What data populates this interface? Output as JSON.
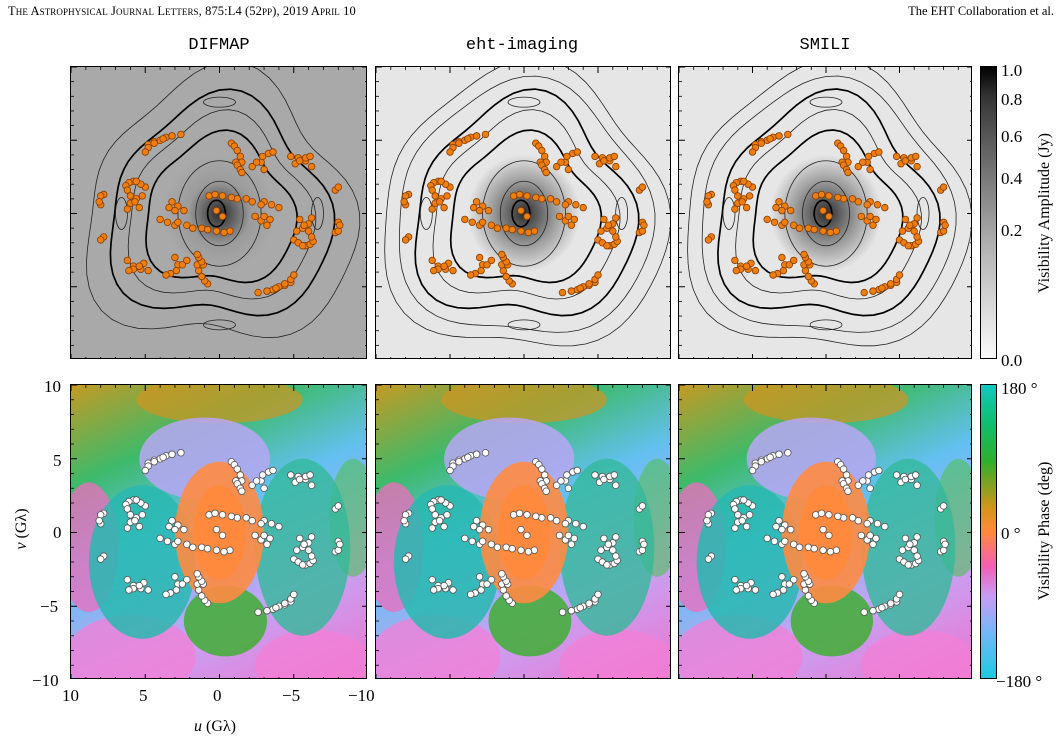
{
  "header": {
    "journal": "The Astrophysical Journal Letters, 875:L4 (52pp), 2019 April 10",
    "authors": "The EHT Collaboration et al."
  },
  "columns": [
    {
      "title": "DIFMAP"
    },
    {
      "title": "eht-imaging"
    },
    {
      "title": "SMILI"
    }
  ],
  "colorbars": {
    "amplitude": {
      "label": "Visibility Amplitude (Jy)",
      "ticks": [
        "1.0",
        "0.8",
        "0.6",
        "0.4",
        "0.2",
        "0.0"
      ],
      "tick_values": [
        1.0,
        0.8,
        0.6,
        0.4,
        0.2,
        0.0
      ]
    },
    "phase": {
      "label": "Visibility Phase (deg)",
      "ticks": [
        "180 °",
        "0 °",
        "−180 °"
      ],
      "tick_values": [
        180,
        0,
        -180
      ]
    }
  },
  "axes": {
    "xlabel_var": "u",
    "xlabel_unit": "(Gλ)",
    "ylabel_var": "v",
    "ylabel_unit": "(Gλ)",
    "xticks": [
      "10",
      "5",
      "0",
      "−5",
      "−10"
    ],
    "yticks": [
      "10",
      "5",
      "0",
      "−5",
      "−10"
    ],
    "xlim": [
      10,
      -10
    ],
    "ylim": [
      -10,
      10
    ]
  },
  "uv_tracks": [
    [
      [
        -0.8,
        4.8
      ],
      [
        -1.0,
        4.6
      ],
      [
        -1.2,
        4.3
      ],
      [
        -1.4,
        3.9
      ],
      [
        -1.5,
        3.5
      ]
    ],
    [
      [
        -1.1,
        3.5
      ],
      [
        -1.2,
        3.3
      ],
      [
        -1.4,
        3.0
      ],
      [
        -1.5,
        2.8
      ]
    ],
    [
      [
        -4.8,
        3.9
      ],
      [
        -5.3,
        3.8
      ],
      [
        -5.8,
        3.6
      ],
      [
        -6.2,
        3.2
      ]
    ],
    [
      [
        3.2,
        5.3
      ],
      [
        3.6,
        5.2
      ],
      [
        4.0,
        5.0
      ],
      [
        4.4,
        4.9
      ],
      [
        4.8,
        4.7
      ]
    ],
    [
      [
        5.8,
        2.2
      ],
      [
        6.1,
        2.1
      ],
      [
        6.3,
        1.9
      ]
    ],
    [
      [
        5.2,
        1.2
      ],
      [
        5.6,
        1.0
      ],
      [
        6.0,
        0.7
      ],
      [
        6.2,
        0.3
      ]
    ],
    [
      [
        7.8,
        1.3
      ],
      [
        8.0,
        1.2
      ]
    ],
    [
      [
        3.2,
        0.8
      ],
      [
        2.8,
        0.5
      ],
      [
        2.4,
        0.2
      ]
    ],
    [
      [
        -3.0,
        0.8
      ],
      [
        -3.5,
        0.6
      ],
      [
        -4.0,
        0.4
      ]
    ],
    [
      [
        2.8,
        -0.6
      ],
      [
        2.2,
        -0.8
      ],
      [
        1.8,
        -1.0
      ]
    ],
    [
      [
        -3.0,
        -0.2
      ],
      [
        -3.4,
        -0.4
      ]
    ],
    [
      [
        1.2,
        -1.0
      ],
      [
        0.8,
        -1.1
      ]
    ],
    [
      [
        0.7,
        1.2
      ],
      [
        0.3,
        1.3
      ],
      [
        -0.2,
        1.2
      ]
    ],
    [
      [
        0.2,
        0.2
      ]
    ],
    [
      [
        -5.4,
        -0.4
      ],
      [
        -5.7,
        -0.8
      ],
      [
        -6.0,
        -1.2
      ],
      [
        -6.2,
        -1.6
      ]
    ],
    [
      [
        -5.0,
        -1.8
      ],
      [
        -5.3,
        -2.0
      ],
      [
        -5.6,
        -2.2
      ]
    ],
    [
      [
        -8.0,
        -0.6
      ],
      [
        -8.1,
        -0.8
      ]
    ],
    [
      [
        5.1,
        -3.4
      ],
      [
        5.4,
        -3.6
      ],
      [
        5.8,
        -3.8
      ],
      [
        6.1,
        -3.9
      ]
    ],
    [
      [
        3.0,
        -3.0
      ],
      [
        2.8,
        -3.5
      ],
      [
        2.9,
        -3.9
      ],
      [
        3.3,
        -4.1
      ],
      [
        3.6,
        -4.2
      ]
    ],
    [
      [
        2.2,
        -3.2
      ],
      [
        2.5,
        -3.5
      ]
    ],
    [
      [
        -2.6,
        -5.4
      ],
      [
        -3.2,
        -5.3
      ],
      [
        -3.8,
        -5.1
      ],
      [
        -4.4,
        -4.8
      ],
      [
        -4.8,
        -4.5
      ],
      [
        -5.0,
        -4.2
      ]
    ],
    [
      [
        7.8,
        -1.6
      ],
      [
        8.0,
        -1.8
      ]
    ]
  ]
}
